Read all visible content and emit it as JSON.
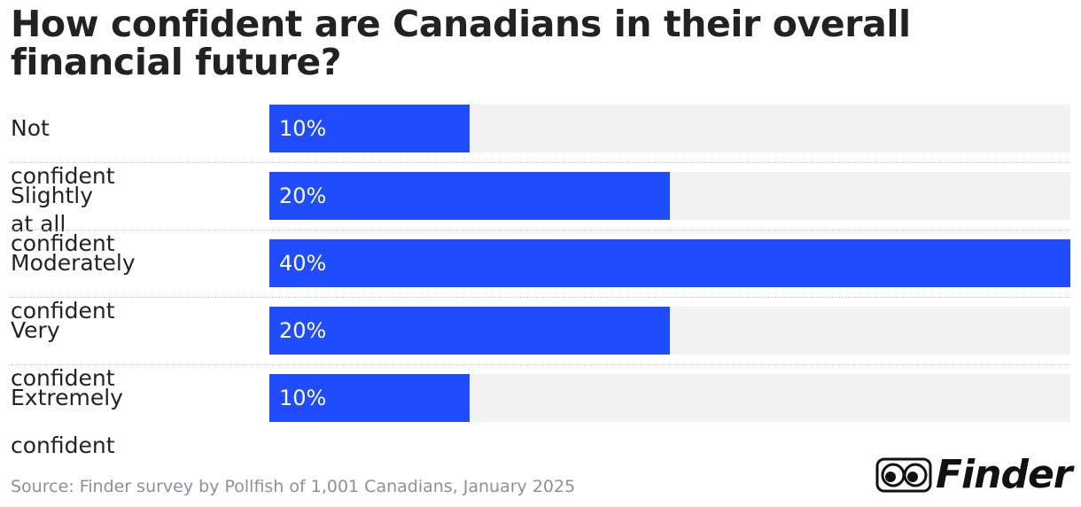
{
  "chart_data": {
    "type": "bar",
    "orientation": "horizontal",
    "title": "How confident are Canadians in their overall financial future?",
    "categories": [
      "Not confident at all",
      "Slightly confident",
      "Moderately confident",
      "Very confident",
      "Extremely confident"
    ],
    "values": [
      10,
      20,
      40,
      20,
      10
    ],
    "value_labels": [
      "10%",
      "20%",
      "40%",
      "20%",
      "10%"
    ],
    "unit": "%",
    "xlim": [
      0,
      40
    ],
    "bar_color": "#1f4cff",
    "track_color": "#f2f2f2",
    "source": "Source: Finder survey by Pollfish of 1,001 Canadians, January 2025"
  },
  "brand": {
    "name": "Finder",
    "logo_icon": "eyes-icon"
  }
}
